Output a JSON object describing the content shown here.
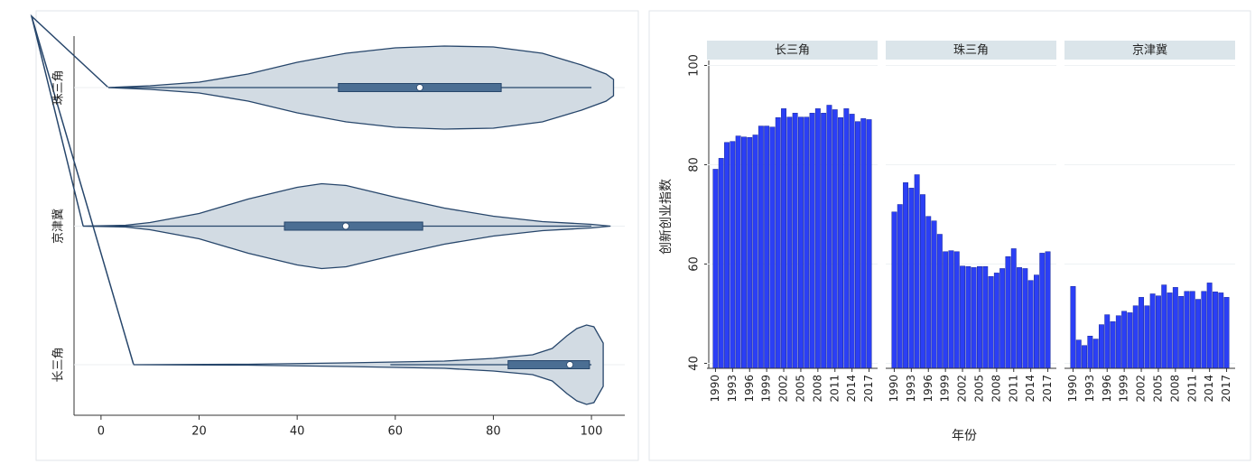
{
  "chart_data": [
    {
      "type": "violin",
      "xlim": [
        -5.5,
        106.8
      ],
      "xticks": [
        0,
        20,
        40,
        60,
        80,
        100
      ],
      "color": "#d2dbe3",
      "box_color": "#4b6e93",
      "violins": [
        {
          "name": "珠三角",
          "whisker_low": 1.5,
          "q1": 48.4,
          "median": 65,
          "q3": 81.6,
          "whisker_high": 100,
          "density": [
            [
              1.5,
              0
            ],
            [
              10,
              0.04
            ],
            [
              20,
              0.12
            ],
            [
              30,
              0.3
            ],
            [
              40,
              0.56
            ],
            [
              50,
              0.76
            ],
            [
              60,
              0.88
            ],
            [
              70,
              0.92
            ],
            [
              80,
              0.9
            ],
            [
              90,
              0.76
            ],
            [
              98,
              0.5
            ],
            [
              103,
              0.3
            ],
            [
              104.5,
              0.18
            ]
          ]
        },
        {
          "name": "京津冀",
          "whisker_low": -3.7,
          "q1": 37.4,
          "median": 49.9,
          "q3": 65.6,
          "whisker_high": 100,
          "density": [
            [
              -3.7,
              0
            ],
            [
              5,
              0.02
            ],
            [
              10,
              0.08
            ],
            [
              20,
              0.28
            ],
            [
              30,
              0.6
            ],
            [
              40,
              0.86
            ],
            [
              45,
              0.94
            ],
            [
              50,
              0.9
            ],
            [
              60,
              0.64
            ],
            [
              70,
              0.4
            ],
            [
              80,
              0.22
            ],
            [
              90,
              0.1
            ],
            [
              100,
              0.04
            ],
            [
              103.9,
              0
            ]
          ]
        },
        {
          "name": "长三角",
          "whisker_low": 59,
          "q1": 83,
          "median": 95.6,
          "q3": 99.6,
          "whisker_high": 100,
          "density": [
            [
              6.6,
              0
            ],
            [
              30,
              0.01
            ],
            [
              50,
              0.04
            ],
            [
              70,
              0.08
            ],
            [
              80,
              0.14
            ],
            [
              88,
              0.22
            ],
            [
              92,
              0.36
            ],
            [
              95,
              0.64
            ],
            [
              97,
              0.8
            ],
            [
              99,
              0.88
            ],
            [
              100.5,
              0.84
            ],
            [
              102.4,
              0.48
            ]
          ]
        }
      ]
    },
    {
      "type": "bar",
      "xlabel": "年份",
      "ylabel": "创新创业指数",
      "color": "#2b3ff5",
      "x": [
        1990,
        1991,
        1992,
        1993,
        1994,
        1995,
        1996,
        1997,
        1998,
        1999,
        2000,
        2001,
        2002,
        2003,
        2004,
        2005,
        2006,
        2007,
        2008,
        2009,
        2010,
        2011,
        2012,
        2013,
        2014,
        2015,
        2016,
        2017
      ],
      "xlim": [
        1988.5,
        2018.5
      ],
      "xticks": [
        1990,
        1993,
        1996,
        1999,
        2002,
        2005,
        2008,
        2011,
        2014,
        2017
      ],
      "ylim": [
        39,
        101
      ],
      "yticks": [
        40,
        60,
        80,
        100
      ],
      "grid": true,
      "facets": [
        {
          "title": "长三角",
          "values": [
            79.1,
            81.3,
            84.5,
            84.7,
            85.8,
            85.6,
            85.5,
            86.0,
            87.8,
            87.8,
            87.6,
            89.5,
            91.3,
            89.6,
            90.4,
            89.6,
            89.6,
            90.4,
            91.3,
            90.4,
            92.0,
            91.1,
            89.5,
            91.3,
            90.2,
            88.7,
            89.3,
            89.1
          ]
        },
        {
          "title": "珠三角",
          "values": [
            70.5,
            72.0,
            76.4,
            75.3,
            78.0,
            74.0,
            69.6,
            68.7,
            66.0,
            62.5,
            62.7,
            62.5,
            59.6,
            59.5,
            59.3,
            59.5,
            59.5,
            57.5,
            58.2,
            59.1,
            61.5,
            63.1,
            59.3,
            59.1,
            56.7,
            57.8,
            62.2,
            62.5
          ]
        },
        {
          "title": "京津冀",
          "values": [
            55.5,
            44.7,
            43.6,
            45.5,
            44.9,
            47.8,
            49.8,
            48.4,
            49.6,
            50.5,
            50.2,
            51.6,
            53.3,
            51.6,
            54.0,
            53.6,
            55.8,
            54.2,
            55.3,
            53.5,
            54.5,
            54.5,
            52.9,
            54.5,
            56.2,
            54.4,
            54.2,
            53.3
          ]
        }
      ]
    }
  ]
}
